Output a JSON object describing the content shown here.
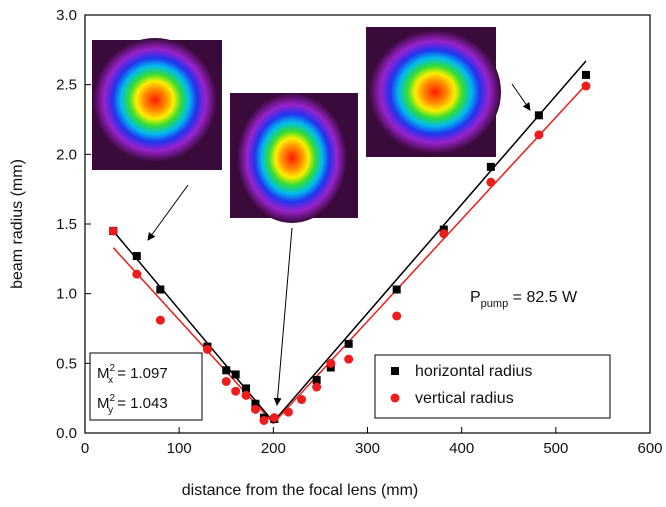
{
  "chart_data": {
    "type": "scatter",
    "xlabel": "distance from the focal lens (mm)",
    "ylabel": "beam radius (mm)",
    "xlim": [
      0,
      600
    ],
    "xticks": [
      0,
      100,
      200,
      300,
      400,
      500,
      600
    ],
    "ylim": [
      0,
      3
    ],
    "yticks": [
      {
        "value": 0,
        "label": "0.0"
      },
      0.5,
      {
        "value": 1,
        "label": "1.0"
      },
      1.5,
      {
        "value": 2,
        "label": "2.0"
      },
      2.5,
      {
        "value": 3,
        "label": "3.0"
      }
    ],
    "legend": "lower right",
    "series": [
      {
        "name": "horizontal radius",
        "color": "#000000",
        "marker": "square",
        "x": [
          30,
          55,
          80,
          130,
          150,
          160,
          171,
          181,
          190,
          201,
          246,
          261,
          280,
          331,
          381,
          431,
          482,
          532
        ],
        "values": [
          1.45,
          1.27,
          1.03,
          0.62,
          0.45,
          0.42,
          0.32,
          0.21,
          0.11,
          0.1,
          0.38,
          0.47,
          0.64,
          1.03,
          1.46,
          1.91,
          2.28,
          2.57
        ]
      },
      {
        "name": "vertical radius",
        "color": "#ee1c1c",
        "marker": "circle",
        "x": [
          30,
          55,
          80,
          130,
          150,
          160,
          171,
          181,
          190,
          201,
          216,
          230,
          246,
          261,
          280,
          331,
          381,
          431,
          482,
          532
        ],
        "values": [
          1.45,
          1.14,
          0.81,
          0.6,
          0.37,
          0.3,
          0.27,
          0.17,
          0.09,
          0.11,
          0.15,
          0.24,
          0.33,
          0.5,
          0.53,
          0.84,
          1.43,
          1.8,
          2.14,
          2.49
        ]
      }
    ],
    "fit_lines": [
      {
        "color": "#000000",
        "x": [
          30,
          200,
          532
        ],
        "values": [
          1.45,
          0.08,
          2.67
        ]
      },
      {
        "color": "#ee1c1c",
        "x": [
          30,
          200,
          532
        ],
        "values": [
          1.33,
          0.07,
          2.5
        ]
      }
    ],
    "annotations": {
      "pump": [
        "P",
        "pump",
        " = 82.5 W"
      ],
      "mx": [
        "M",
        "2",
        "x",
        " = 1.097"
      ],
      "my": [
        "M",
        "2",
        "y",
        " = 1.043"
      ]
    }
  }
}
